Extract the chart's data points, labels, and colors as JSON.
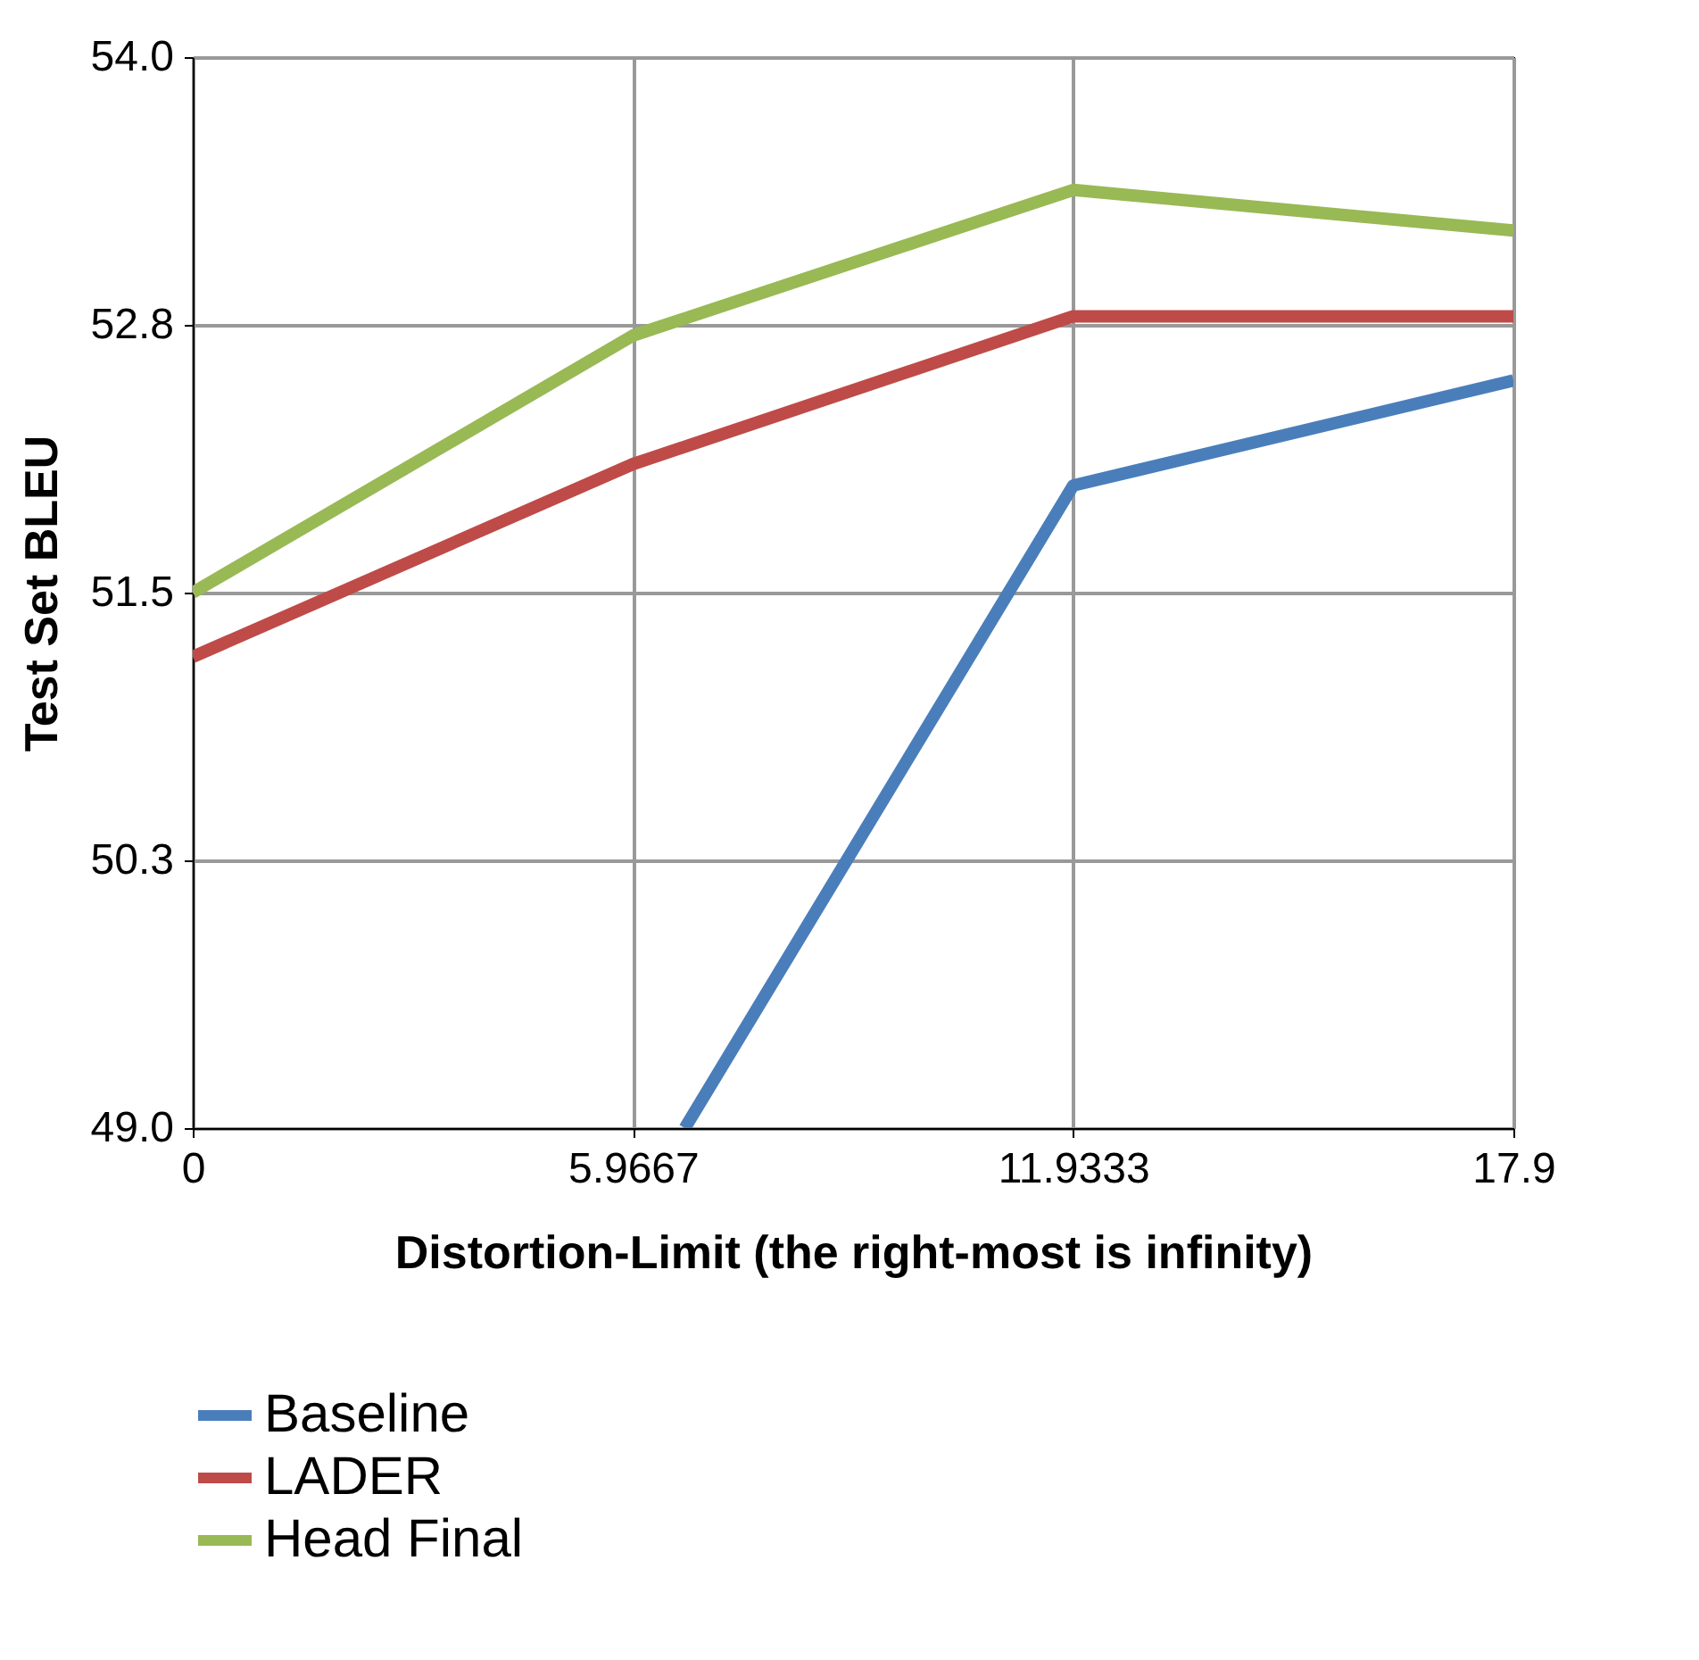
{
  "chart_data": {
    "type": "line",
    "xlabel": "Distortion-Limit (the right-most is infinity)",
    "ylabel": "Test Set BLEU",
    "x": [
      0,
      5.9667,
      11.9333,
      17.9
    ],
    "xlim": [
      0,
      17.9
    ],
    "xticks": [
      0,
      5.9667,
      11.9333,
      17.9
    ],
    "ylim": [
      49,
      54
    ],
    "yticks": [
      {
        "value": 49,
        "label": "49.0"
      },
      {
        "value": 50.25,
        "label": "50.3"
      },
      {
        "value": 51.5,
        "label": "51.5"
      },
      {
        "value": 52.75,
        "label": "52.8"
      },
      {
        "value": 54,
        "label": "54.0"
      }
    ],
    "grid": true,
    "legend": "bottom",
    "marker": "none",
    "line_style": "solid",
    "series": [
      {
        "name": "Baseline",
        "color": "#4a7ebb",
        "x": [
          6.67,
          11.9333,
          17.9
        ],
        "values": [
          49.0,
          52.0,
          52.49
        ]
      },
      {
        "name": "LADER",
        "color": "#be4b48",
        "values": [
          51.2,
          52.1,
          52.79,
          52.79
        ]
      },
      {
        "name": "Head Final",
        "color": "#98b954",
        "values": [
          51.5,
          52.7,
          53.38,
          53.19
        ]
      }
    ]
  }
}
